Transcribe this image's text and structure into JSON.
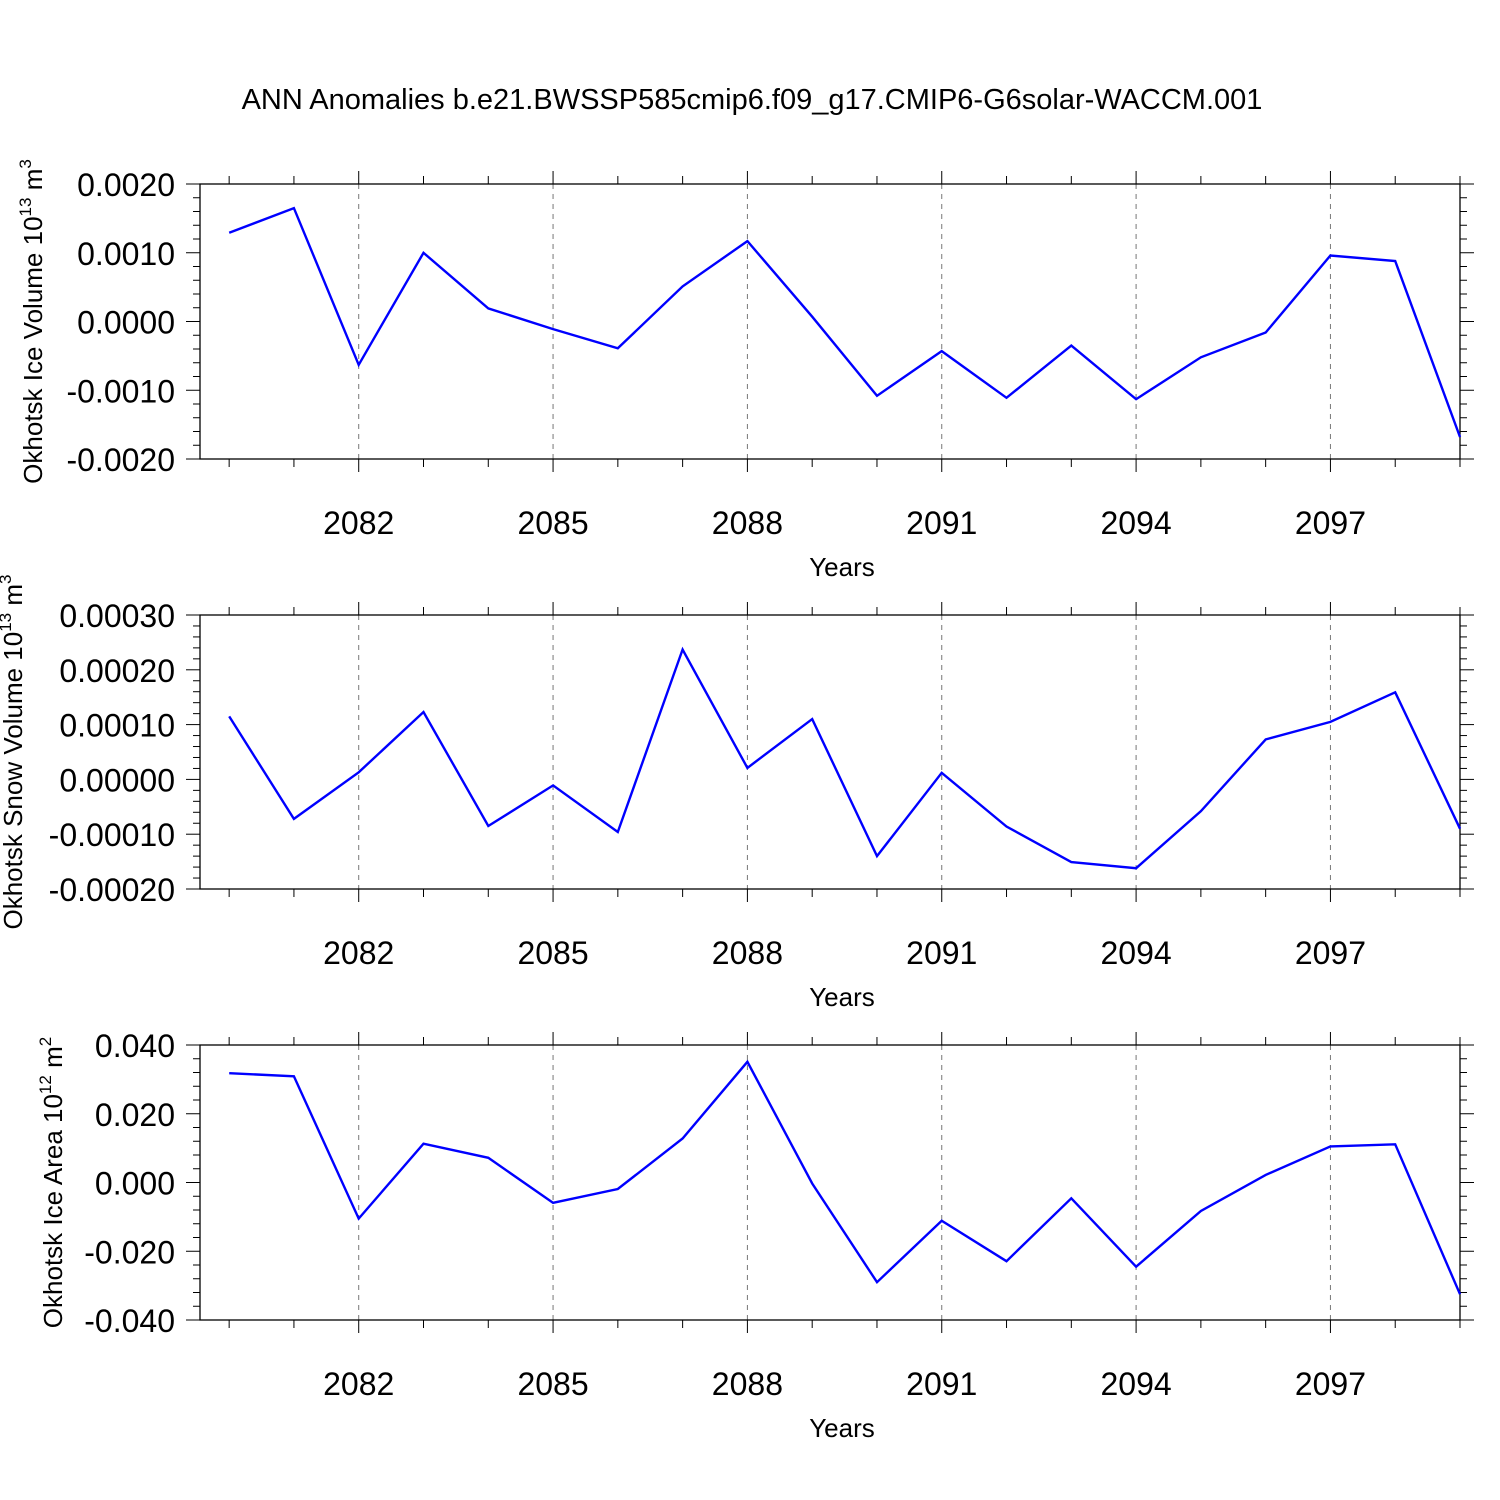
{
  "title": "ANN Anomalies b.e21.BWSSP585cmip6.f09_g17.CMIP6-G6solar-WACCM.001",
  "chart_data": [
    {
      "type": "line",
      "ylabel_main": "Okhotsk Ice Volume 10",
      "ylabel_exp": "13",
      "ylabel_unit": " m",
      "ylabel_unit_exp": "3",
      "xlabel": "Years",
      "x": [
        2080,
        2081,
        2082,
        2083,
        2084,
        2085,
        2086,
        2087,
        2088,
        2089,
        2090,
        2091,
        2092,
        2093,
        2094,
        2095,
        2096,
        2097,
        2098,
        2099
      ],
      "xlim": [
        2079.55,
        2099
      ],
      "xticks": [
        "2082",
        "2085",
        "2088",
        "2091",
        "2094",
        "2097"
      ],
      "ylim": [
        -0.002,
        0.002
      ],
      "yticks": [
        "-0.0020",
        "-0.0010",
        "0.0000",
        "0.0010",
        "0.0020"
      ],
      "grid": "x dashed at labeled years",
      "color": "#0000ff",
      "series": [
        {
          "values": [
            0.00129,
            0.00165,
            -0.00063,
            0.001,
            0.00019,
            -0.00011,
            -0.00039,
            0.00051,
            0.00117,
            7e-05,
            -0.00108,
            -0.00043,
            -0.00111,
            -0.00035,
            -0.00113,
            -0.00052,
            -0.00016,
            0.00096,
            0.00088,
            -0.00168
          ]
        }
      ]
    },
    {
      "type": "line",
      "ylabel_main": "Okhotsk Snow Volume 10",
      "ylabel_exp": "13",
      "ylabel_unit": " m",
      "ylabel_unit_exp": "3",
      "xlabel": "Years",
      "x": [
        2080,
        2081,
        2082,
        2083,
        2084,
        2085,
        2086,
        2087,
        2088,
        2089,
        2090,
        2091,
        2092,
        2093,
        2094,
        2095,
        2096,
        2097,
        2098,
        2099
      ],
      "xlim": [
        2079.55,
        2099
      ],
      "xticks": [
        "2082",
        "2085",
        "2088",
        "2091",
        "2094",
        "2097"
      ],
      "ylim": [
        -0.0002,
        0.0003
      ],
      "yticks": [
        "-0.00020",
        "-0.00010",
        "0.00000",
        "0.00010",
        "0.00020",
        "0.00030"
      ],
      "grid": "x dashed at labeled years",
      "color": "#0000ff",
      "series": [
        {
          "values": [
            0.000115,
            -7.2e-05,
            1.3e-05,
            0.000123,
            -8.5e-05,
            -1.1e-05,
            -9.6e-05,
            0.000237,
            2.1e-05,
            0.00011,
            -0.00014,
            1.2e-05,
            -8.6e-05,
            -0.000151,
            -0.000162,
            -5.8e-05,
            7.3e-05,
            0.000105,
            0.000159,
            -9e-05
          ]
        }
      ]
    },
    {
      "type": "line",
      "ylabel_main": "Okhotsk Ice Area 10",
      "ylabel_exp": "12",
      "ylabel_unit": " m",
      "ylabel_unit_exp": "2",
      "xlabel": "Years",
      "x": [
        2080,
        2081,
        2082,
        2083,
        2084,
        2085,
        2086,
        2087,
        2088,
        2089,
        2090,
        2091,
        2092,
        2093,
        2094,
        2095,
        2096,
        2097,
        2098,
        2099
      ],
      "xlim": [
        2079.55,
        2099
      ],
      "xticks": [
        "2082",
        "2085",
        "2088",
        "2091",
        "2094",
        "2097"
      ],
      "ylim": [
        -0.04,
        0.04
      ],
      "yticks": [
        "-0.040",
        "-0.020",
        "0.000",
        "0.020",
        "0.040"
      ],
      "grid": "x dashed at labeled years",
      "color": "#0000ff",
      "series": [
        {
          "values": [
            0.0318,
            0.0309,
            -0.0105,
            0.0113,
            0.0072,
            -0.0059,
            -0.0019,
            0.0128,
            0.0351,
            -0.0003,
            -0.029,
            -0.0111,
            -0.0229,
            -0.0046,
            -0.0245,
            -0.0083,
            0.0022,
            0.0105,
            0.0111,
            -0.0325
          ]
        }
      ]
    }
  ]
}
